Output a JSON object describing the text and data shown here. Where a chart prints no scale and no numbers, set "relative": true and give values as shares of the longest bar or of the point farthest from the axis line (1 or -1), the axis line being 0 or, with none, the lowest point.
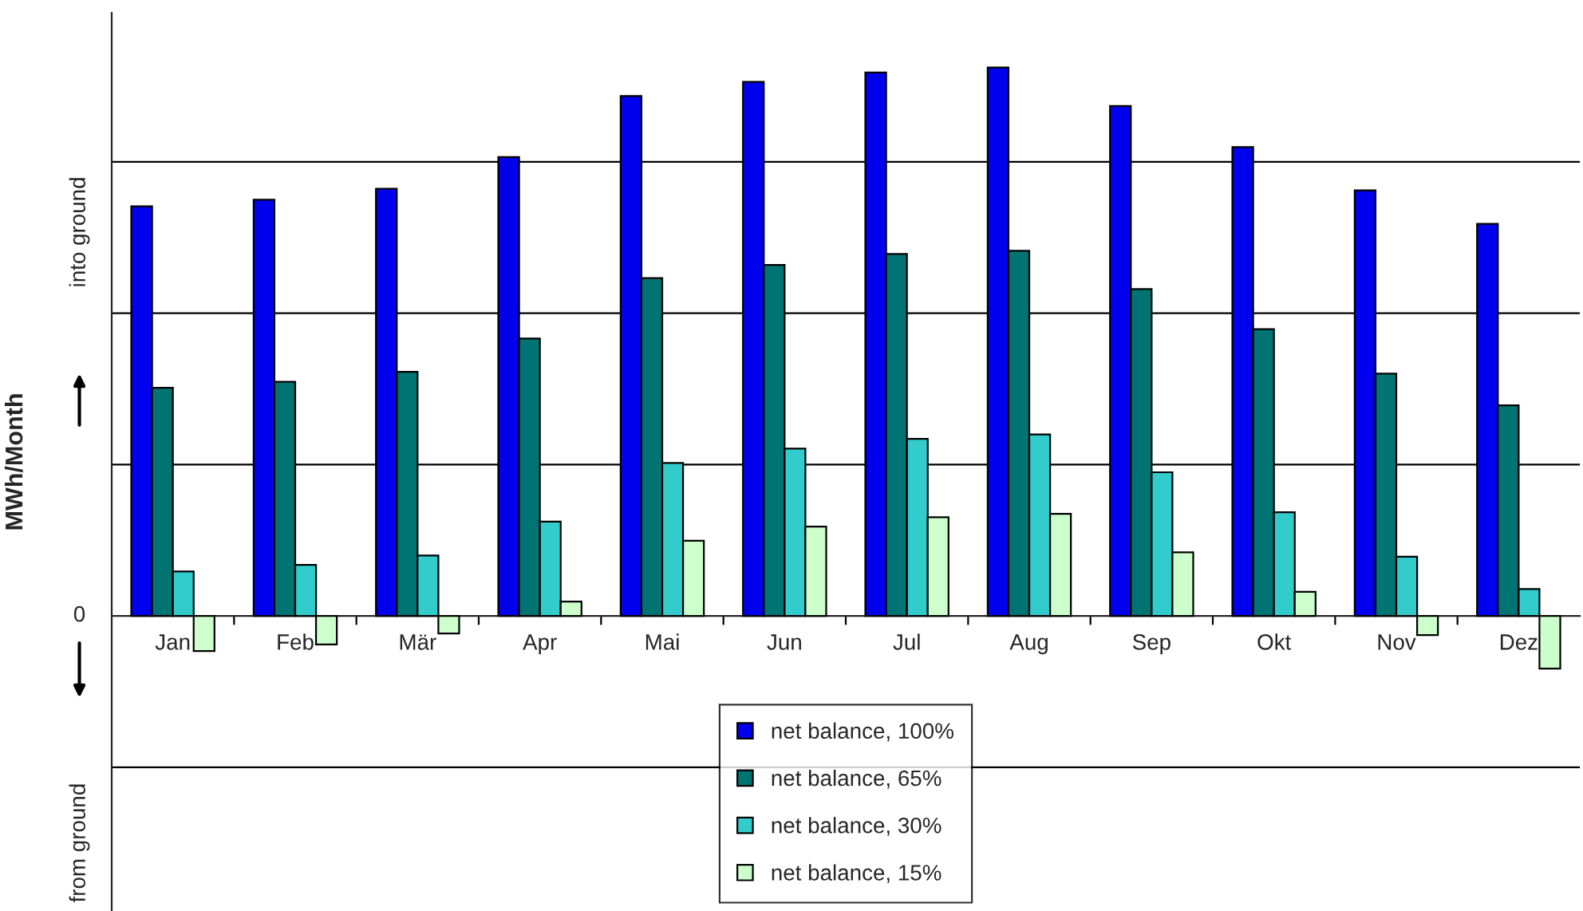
{
  "chart_data": {
    "type": "bar",
    "relative": true,
    "ylabel": "MWh/Month",
    "categories": [
      "Jan",
      "Feb",
      "Mär",
      "Apr",
      "Mai",
      "Jun",
      "Jul",
      "Aug",
      "Sep",
      "Okt",
      "Nov",
      "Dez"
    ],
    "series": [
      {
        "name": "net balance, 100%",
        "color": "#0000ee",
        "values": [
          0.747,
          0.759,
          0.779,
          0.837,
          0.948,
          0.974,
          0.991,
          1,
          0.93,
          0.855,
          0.776,
          0.715
        ]
      },
      {
        "name": "net balance, 65%",
        "color": "#007373",
        "values": [
          0.416,
          0.427,
          0.445,
          0.506,
          0.616,
          0.64,
          0.66,
          0.666,
          0.596,
          0.523,
          0.442,
          0.384
        ]
      },
      {
        "name": "net balance, 30%",
        "color": "#33cccc",
        "values": [
          0.081,
          0.093,
          0.11,
          0.172,
          0.279,
          0.305,
          0.323,
          0.331,
          0.262,
          0.189,
          0.108,
          0.049
        ]
      },
      {
        "name": "net balance, 15%",
        "color": "#ccffcc",
        "values": [
          -0.064,
          -0.052,
          -0.032,
          0.026,
          0.137,
          0.163,
          0.18,
          0.186,
          0.116,
          0.044,
          -0.035,
          -0.096
        ]
      }
    ],
    "ref_lines": [
      {
        "axis": "y",
        "value": 0.828,
        "color": "#000000"
      },
      {
        "axis": "y",
        "value": 0.552,
        "color": "#000000"
      },
      {
        "axis": "y",
        "value": 0.276,
        "color": "#000000"
      },
      {
        "axis": "y",
        "value": -0.276,
        "color": "#000000"
      }
    ],
    "annotations": [
      "into ground",
      "0",
      "from ground"
    ],
    "legend": "bottom"
  }
}
